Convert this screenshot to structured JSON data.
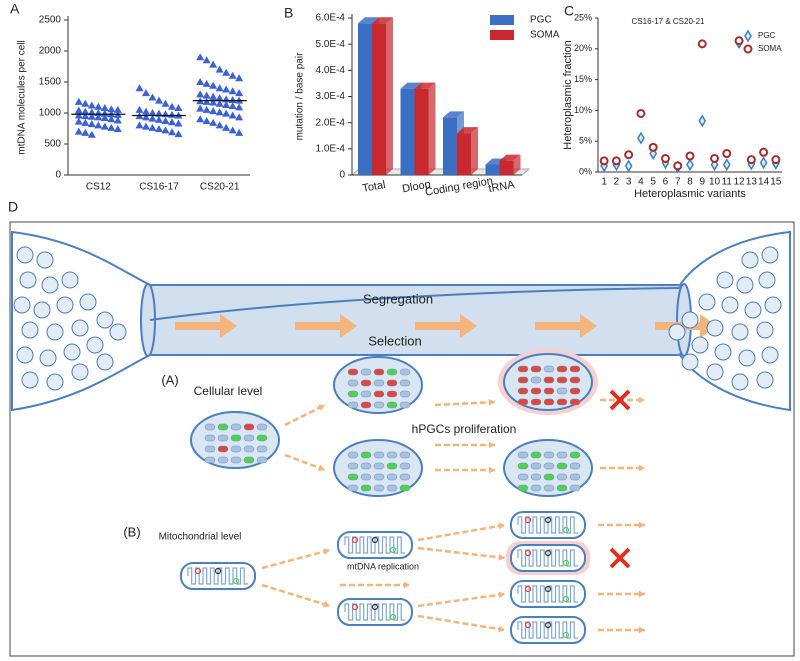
{
  "chart_data": [
    {
      "type": "strip",
      "label": "A",
      "ylabel": "mtDNA molecules per cell",
      "categories": [
        "CS12",
        "CS16-17",
        "CS20-21"
      ],
      "color": "#3a62d6",
      "ylim": [
        0,
        2500
      ],
      "yticks": [
        0,
        500,
        1000,
        1500,
        2000,
        2500
      ],
      "series": [
        {
          "values": [
            1180,
            1150,
            1120,
            1100,
            1080,
            1060,
            1050,
            1040,
            1020,
            1010,
            1000,
            990,
            980,
            970,
            960,
            950,
            940,
            930,
            920,
            900,
            880,
            860,
            840,
            820,
            800,
            780,
            760,
            740,
            700,
            680,
            650
          ]
        },
        {
          "values": [
            1400,
            1320,
            1250,
            1200,
            1150,
            1100,
            1080,
            1050,
            1020,
            1000,
            990,
            980,
            970,
            960,
            950,
            930,
            910,
            890,
            870,
            850,
            830,
            800,
            780,
            760,
            740,
            720,
            690,
            660
          ]
        },
        {
          "values": [
            1900,
            1850,
            1780,
            1700,
            1650,
            1600,
            1560,
            1500,
            1470,
            1440,
            1400,
            1380,
            1350,
            1320,
            1300,
            1280,
            1260,
            1240,
            1220,
            1210,
            1200,
            1190,
            1180,
            1170,
            1150,
            1130,
            1110,
            1090,
            1070,
            1050,
            1030,
            1010,
            990,
            960,
            930,
            900,
            870,
            840,
            800,
            760,
            720,
            680
          ]
        }
      ],
      "medians": [
        980,
        960,
        1200
      ]
    },
    {
      "type": "bar3d",
      "label": "B",
      "ylabel": "mutation / base pair",
      "categories": [
        "Total",
        "Dloop",
        "Coding region",
        "tRNA"
      ],
      "ylim": [
        0,
        0.0006
      ],
      "yticks": [
        0,
        {
          "value": 0.0001,
          "label": "1.0E-4"
        },
        {
          "value": 0.0002,
          "label": "2.0E-4"
        },
        {
          "value": 0.0003,
          "label": "3.0E-4"
        },
        {
          "value": 0.0004,
          "label": "4.0E-4"
        },
        {
          "value": 0.0005,
          "label": "5.0E-4"
        },
        {
          "value": 0.0006,
          "label": "6.0E-4"
        }
      ],
      "series": [
        {
          "name": "PGC",
          "color": "#3a6fc4",
          "values": [
            0.00058,
            0.00033,
            0.00022,
            4e-05
          ]
        },
        {
          "name": "SOMA",
          "color": "#c8282e",
          "values": [
            0.00058,
            0.00033,
            0.00016,
            5.5e-05
          ]
        }
      ]
    },
    {
      "type": "scatter",
      "label": "C",
      "title": "CS16-17 & CS20-21",
      "xlabel": "Heteroplasmic variants",
      "ylabel": "Heteroplasmic fraction",
      "categories": [
        "1",
        "2",
        "3",
        "4",
        "5",
        "6",
        "7",
        "8",
        "9",
        "10",
        "11",
        "12",
        "13",
        "14",
        "15"
      ],
      "ylim": [
        0,
        25
      ],
      "yticks": [
        {
          "value": 0,
          "label": "0%"
        },
        {
          "value": 5,
          "label": "5%"
        },
        {
          "value": 10,
          "label": "10%"
        },
        {
          "value": 15,
          "label": "15%"
        },
        {
          "value": 20,
          "label": "20%"
        },
        {
          "value": 25,
          "label": "25%"
        }
      ],
      "series": [
        {
          "name": "PGC",
          "color": "#3a7fc4",
          "marker": "diamond",
          "values": [
            1,
            1.2,
            1,
            5.5,
            3,
            1.5,
            0.8,
            1.2,
            8.3,
            1.2,
            1.2,
            21,
            1.3,
            1.5,
            1.4
          ]
        },
        {
          "name": "SOMA",
          "color": "#a52a2a",
          "marker": "circle",
          "values": [
            1.8,
            1.8,
            2.8,
            9.5,
            4,
            2.2,
            1,
            2.6,
            20.8,
            2.2,
            3,
            21.3,
            2,
            3.2,
            2
          ]
        }
      ]
    }
  ],
  "diagram": {
    "label": "D",
    "tube": {
      "top": "Segregation",
      "bottom": "Selection"
    },
    "cellular": {
      "tag": "(A)",
      "title": "Cellular level",
      "step": "hPGCs proliferation"
    },
    "mitochondrial": {
      "tag": "(B)",
      "title": "Mitochondrial level",
      "step": "mtDNA replication"
    }
  }
}
